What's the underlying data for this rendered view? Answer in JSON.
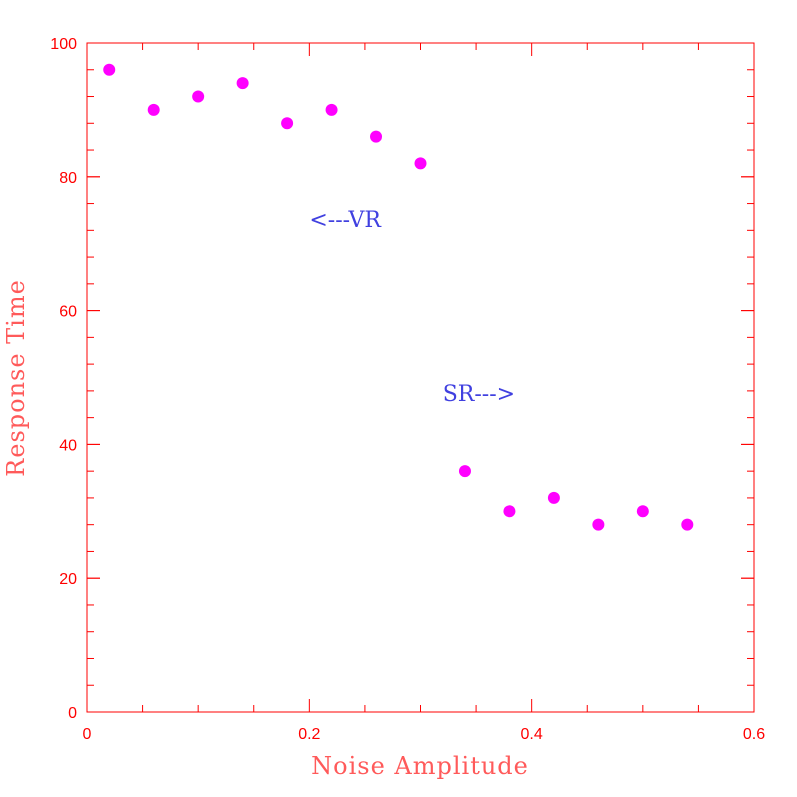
{
  "chart_data": {
    "type": "scatter",
    "title": "",
    "xlabel": "Noise Amplitude",
    "ylabel": "Response Time",
    "xlim": [
      0,
      0.6
    ],
    "ylim": [
      0,
      100
    ],
    "x_ticks": [
      0,
      0.2,
      0.4,
      0.6
    ],
    "x_tick_labels": [
      "0",
      "0.2",
      "0.4",
      "0.6"
    ],
    "y_ticks": [
      0,
      20,
      40,
      60,
      80,
      100
    ],
    "y_tick_labels": [
      "0",
      "20",
      "40",
      "60",
      "80",
      "100"
    ],
    "x_minor_step": 0.05,
    "y_minor_step": 4,
    "grid": false,
    "legend": "none",
    "series": [
      {
        "x": [
          0.02,
          0.06,
          0.1,
          0.14,
          0.18,
          0.22,
          0.26,
          0.3,
          0.34,
          0.38,
          0.42,
          0.46,
          0.5,
          0.54
        ],
        "y": [
          96,
          90,
          92,
          94,
          88,
          90,
          86,
          82,
          36,
          30,
          32,
          28,
          30,
          28
        ]
      }
    ],
    "annotations": [
      {
        "text": "<---VR",
        "x": 0.2,
        "y": 72.5
      },
      {
        "text": "SR--->",
        "x": 0.32,
        "y": 46.5
      }
    ],
    "colors": {
      "axes": "#ff0000",
      "axis_title": "#ff5a5a",
      "points": "#ff00ff",
      "annotation": "#4040e0"
    }
  }
}
